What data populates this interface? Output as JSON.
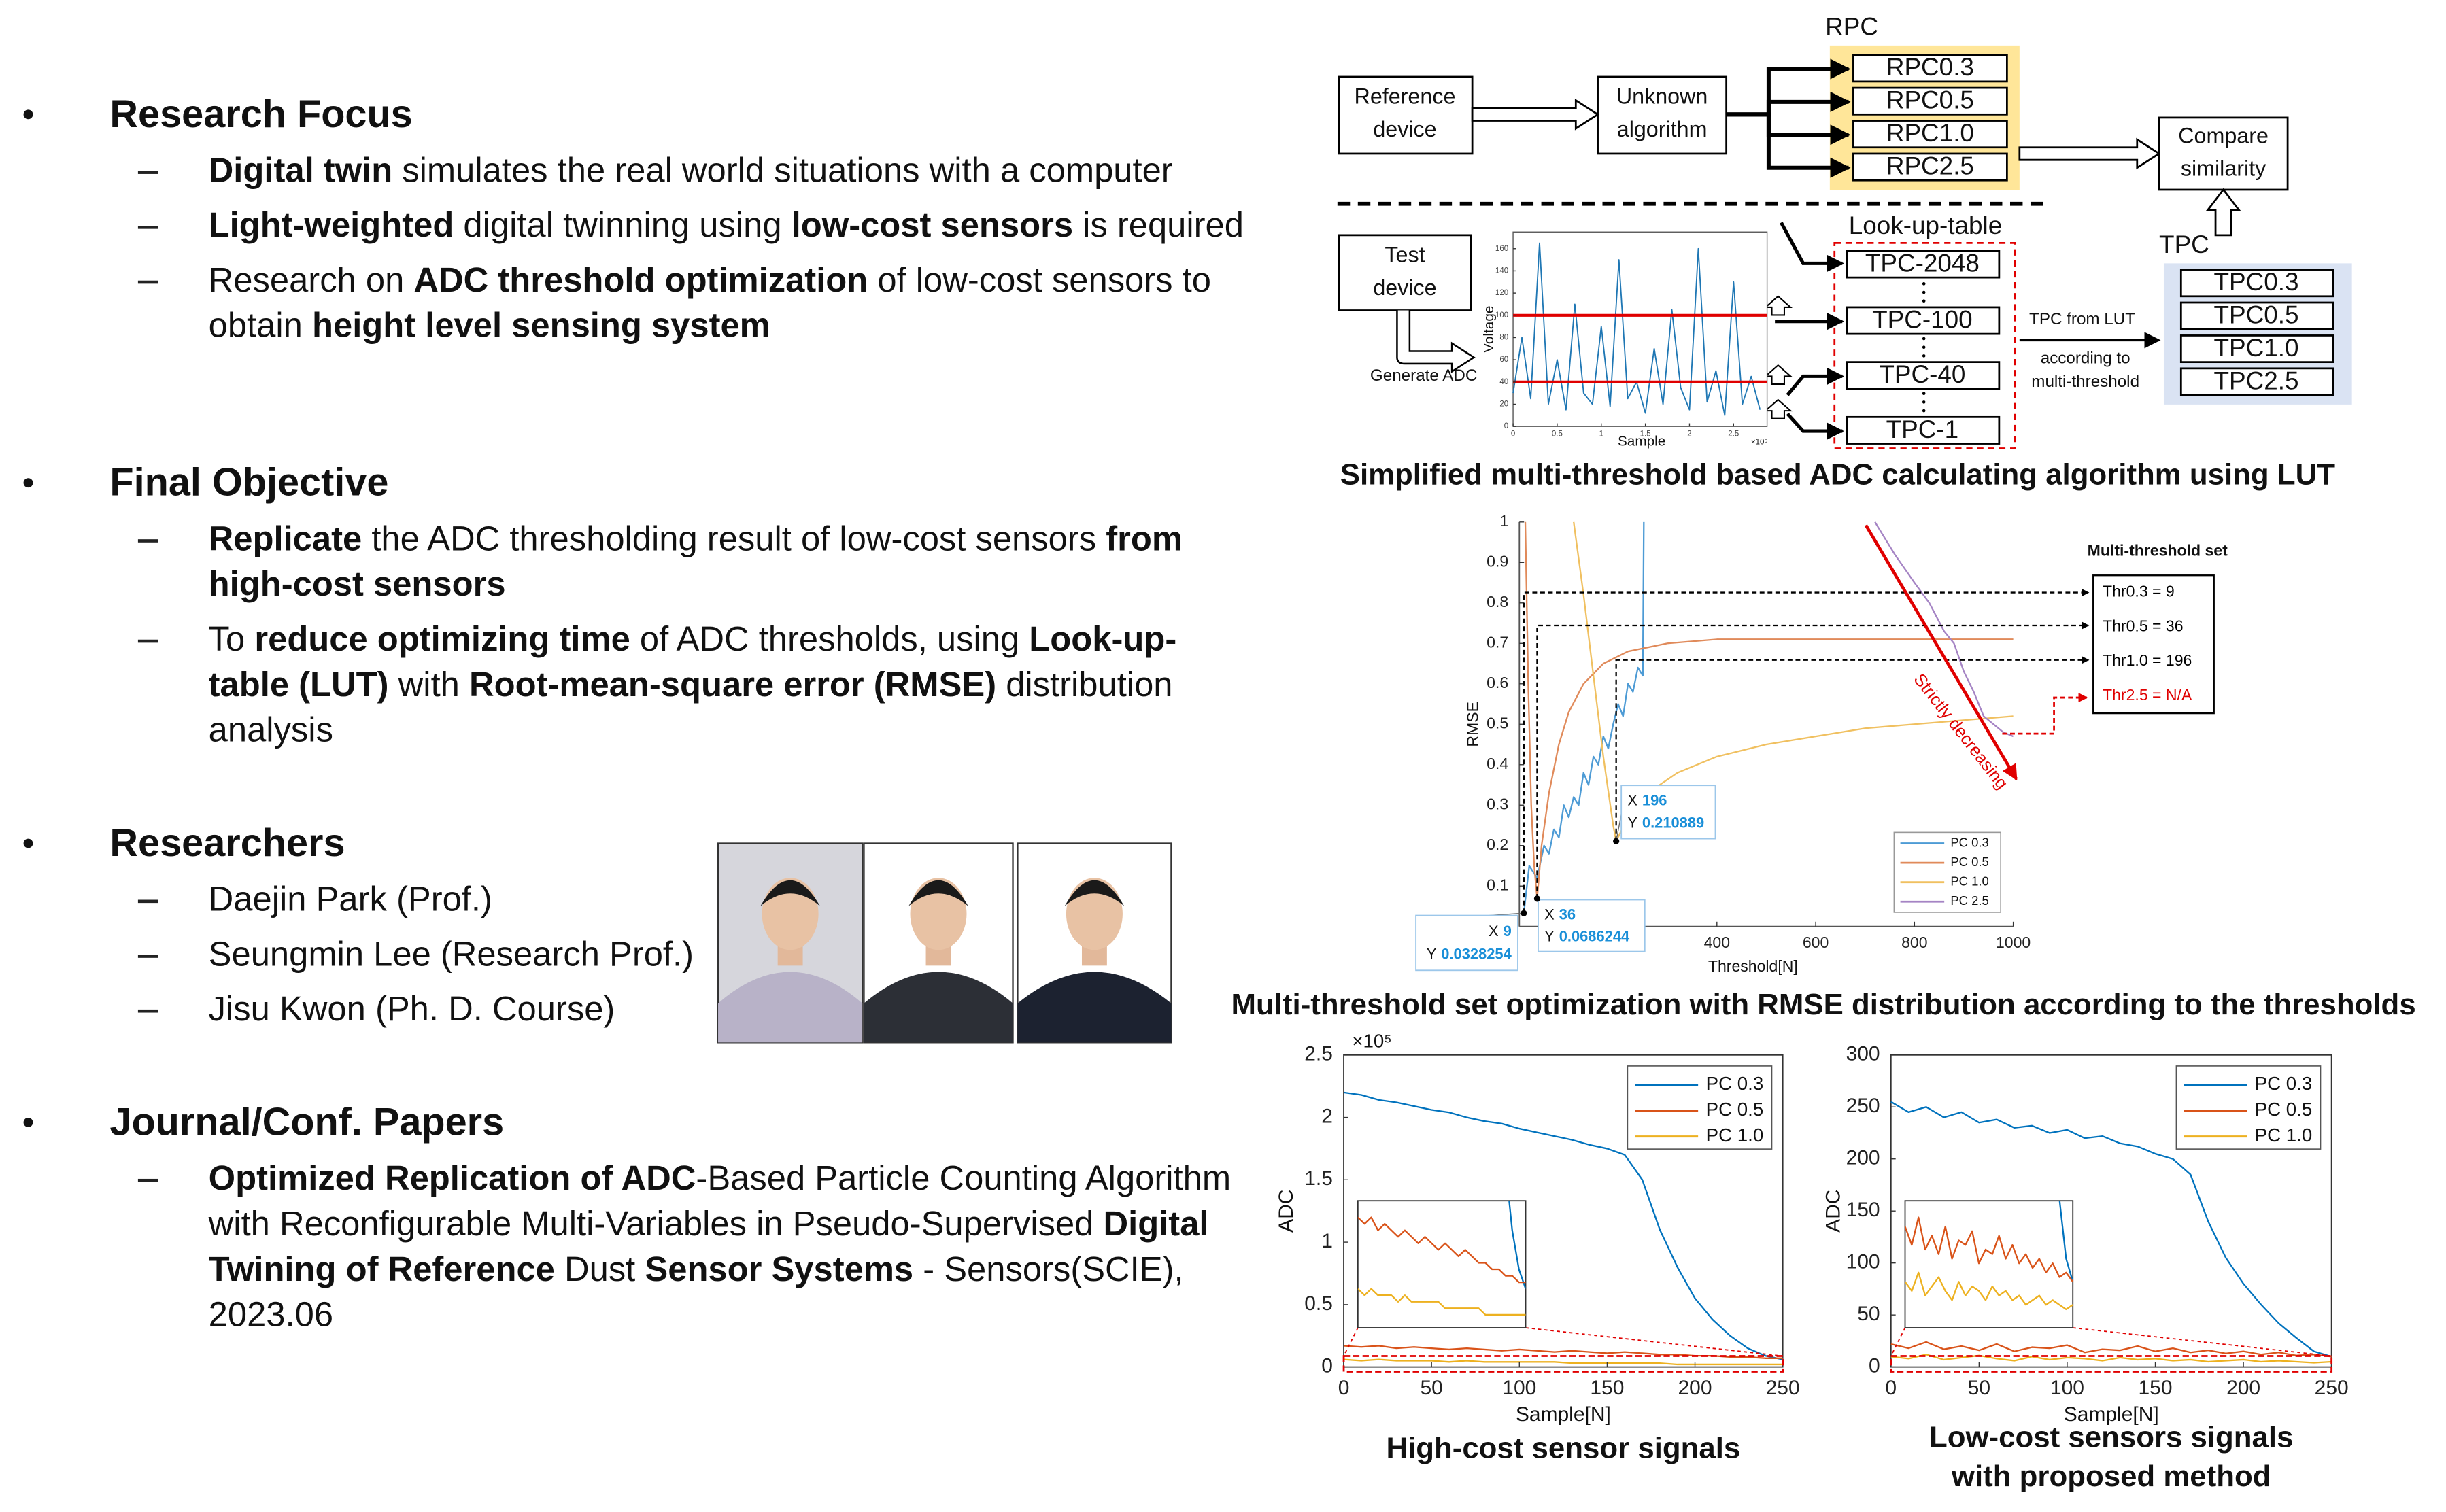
{
  "sections": [
    {
      "heading": "Research Focus",
      "items": [
        [
          {
            "text": "Digital twin",
            "bold": true
          },
          {
            "text": " simulates the real world situations with a computer"
          }
        ],
        [
          {
            "text": "Light-weighted",
            "bold": true
          },
          {
            "text": " digital twinning using "
          },
          {
            "text": "low-cost sensors",
            "bold": true
          },
          {
            "text": " is required"
          }
        ],
        [
          {
            "text": "Research on "
          },
          {
            "text": "ADC threshold optimization",
            "bold": true
          },
          {
            "text": " of low-cost sensors to obtain "
          },
          {
            "text": "height level sensing system",
            "bold": true
          }
        ]
      ]
    },
    {
      "heading": "Final Objective",
      "items": [
        [
          {
            "text": "Replicate",
            "bold": true
          },
          {
            "text": " the ADC thresholding result of low-cost sensors "
          },
          {
            "text": "from high-cost sensors",
            "bold": true
          }
        ],
        [
          {
            "text": "To "
          },
          {
            "text": "reduce optimizing time",
            "bold": true
          },
          {
            "text": " of ADC thresholds, using "
          },
          {
            "text": "Look-up-table (LUT)",
            "bold": true
          },
          {
            "text": " with "
          },
          {
            "text": "Root-mean-square error (RMSE)",
            "bold": true
          },
          {
            "text": " distribution analysis"
          }
        ]
      ]
    },
    {
      "heading": "Researchers",
      "items": [
        [
          {
            "text": "Daejin Park (Prof.)"
          }
        ],
        [
          {
            "text": "Seungmin Lee (Research Prof.)"
          }
        ],
        [
          {
            "text": "Jisu Kwon (Ph. D. Course)"
          }
        ]
      ]
    },
    {
      "heading": "Journal/Conf. Papers",
      "items": [
        [
          {
            "text": "Optimized Replication of ADC",
            "bold": true
          },
          {
            "text": "-Based Particle Counting Algorithm with Reconfigurable Multi-Variables in Pseudo-Supervised "
          },
          {
            "text": "Digital Twining of Reference",
            "bold": true
          },
          {
            "text": " Dust "
          },
          {
            "text": "Sensor Systems",
            "bold": true
          },
          {
            "text": " - Sensors(SCIE), 2023.06"
          }
        ]
      ]
    }
  ],
  "diagram": {
    "caption": "Simplified multi-threshold based ADC calculating algorithm using LUT",
    "rpc_label": "RPC",
    "reference_device": [
      "Reference",
      "device"
    ],
    "unknown_algorithm": [
      "Unknown",
      "algorithm"
    ],
    "rpc_boxes": [
      "RPC0.3",
      "RPC0.5",
      "RPC1.0",
      "RPC2.5"
    ],
    "compare": [
      "Compare",
      "similarity"
    ],
    "test_device": [
      "Test",
      "device"
    ],
    "generate_adc": "Generate ADC",
    "lut_label": "Look-up-table",
    "lut_boxes": [
      "TPC-2048",
      "TPC-100",
      "TPC-40",
      "TPC-1"
    ],
    "tpc_from_lut": "TPC from LUT",
    "according": [
      "according to",
      "multi-threshold"
    ],
    "tpc_label": "TPC",
    "tpc_boxes": [
      "TPC0.3",
      "TPC0.5",
      "TPC1.0",
      "TPC2.5"
    ],
    "signal": {
      "type": "line",
      "xlabel": "Sample",
      "ylabel": "Voltage",
      "x_exponent": "×10⁵",
      "xlim": [
        0,
        288000
      ],
      "ylim": [
        0,
        175
      ],
      "xticks": [
        0,
        {
          "value": 50000,
          "label": "0.5"
        },
        {
          "value": 100000,
          "label": "1"
        },
        {
          "value": 150000,
          "label": "1.5"
        },
        {
          "value": 200000,
          "label": "2"
        },
        {
          "value": 250000,
          "label": "2.5"
        }
      ],
      "yticks": [
        0,
        20,
        40,
        60,
        80,
        100,
        120,
        140,
        160
      ],
      "color": "#1f77b4",
      "x": [
        0,
        10000,
        20000,
        30000,
        40000,
        50000,
        60000,
        70000,
        80000,
        90000,
        100000,
        110000,
        120000,
        130000,
        140000,
        150000,
        160000,
        170000,
        180000,
        190000,
        200000,
        210000,
        220000,
        230000,
        240000,
        250000,
        260000,
        270000,
        280000
      ],
      "values": [
        30,
        80,
        25,
        165,
        20,
        60,
        15,
        110,
        30,
        20,
        90,
        18,
        150,
        25,
        40,
        12,
        70,
        20,
        105,
        35,
        15,
        160,
        22,
        50,
        10,
        130,
        20,
        45,
        15
      ],
      "threshold_lines": [
        100,
        40
      ],
      "threshold_color": "#e00000"
    }
  },
  "rmse_chart": {
    "type": "line",
    "caption": "Multi-threshold set optimization with RMSE distribution according to the thresholds",
    "xlabel": "Threshold[N]",
    "ylabel": "RMSE",
    "xlim": [
      0,
      1000
    ],
    "ylim": [
      0,
      1
    ],
    "xticks": [
      400,
      600,
      800,
      1000
    ],
    "yticks": [
      0.1,
      0.2,
      0.3,
      0.4,
      0.5,
      0.6,
      0.7,
      0.8,
      0.9,
      1
    ],
    "series": [
      {
        "name": "PC 0.3",
        "color": "#4d9bd5",
        "x": [
          9,
          20,
          36,
          50,
          60,
          70,
          80,
          90,
          100,
          110,
          120,
          130,
          140,
          150,
          160,
          170,
          180,
          190,
          200,
          210,
          220,
          230,
          240,
          250,
          252
        ],
        "values": [
          0.033,
          0.15,
          0.12,
          0.2,
          0.18,
          0.24,
          0.22,
          0.3,
          0.27,
          0.32,
          0.3,
          0.38,
          0.35,
          0.42,
          0.4,
          0.47,
          0.44,
          0.5,
          0.55,
          0.52,
          0.6,
          0.58,
          0.64,
          0.62,
          1
        ]
      },
      {
        "name": "PC 0.5",
        "color": "#e08a5a",
        "x": [
          12,
          18,
          24,
          30,
          36,
          45,
          60,
          80,
          100,
          130,
          170,
          220,
          300,
          400,
          600,
          1000
        ],
        "values": [
          1,
          0.6,
          0.3,
          0.15,
          0.069,
          0.2,
          0.33,
          0.45,
          0.53,
          0.6,
          0.65,
          0.68,
          0.7,
          0.71,
          0.71,
          0.71
        ]
      },
      {
        "name": "PC 1.0",
        "color": "#f0c060",
        "x": [
          110,
          130,
          150,
          170,
          190,
          196,
          220,
          260,
          320,
          400,
          500,
          600,
          700,
          800,
          1000
        ],
        "values": [
          1,
          0.82,
          0.62,
          0.42,
          0.25,
          0.211,
          0.27,
          0.33,
          0.38,
          0.42,
          0.45,
          0.47,
          0.49,
          0.5,
          0.52
        ]
      },
      {
        "name": "PC 2.5",
        "color": "#a584c4",
        "x": [
          720,
          760,
          800,
          830,
          860,
          880,
          900,
          920,
          940,
          960,
          980,
          1000
        ],
        "values": [
          1,
          0.92,
          0.85,
          0.8,
          0.73,
          0.7,
          0.63,
          0.58,
          0.52,
          0.5,
          0.48,
          0.47
        ]
      }
    ],
    "datatip_labels": [
      "X",
      "Y"
    ],
    "datatips": [
      {
        "x": 9,
        "y": 0.0328254
      },
      {
        "x": 36,
        "y": 0.0686244
      },
      {
        "x": 196,
        "y": 0.210889
      }
    ],
    "threshold_set": {
      "title": "Multi-threshold set",
      "items": [
        "Thr0.3 = 9",
        "Thr0.5 = 36",
        "Thr1.0 = 196",
        "Thr2.5 = N/A"
      ],
      "item_colors": [
        "#000000",
        "#000000",
        "#000000",
        "#e00000"
      ]
    },
    "annotation": "Strictly decreasing",
    "annotation_color": "#e00000"
  },
  "signal_charts": [
    {
      "type": "line",
      "caption": [
        "High-cost sensor signals"
      ],
      "xlabel": "Sample[N]",
      "ylabel": "ADC",
      "y_exponent": "×10⁵",
      "xlim": [
        0,
        250
      ],
      "ylim": [
        0,
        250000
      ],
      "xticks": [
        0,
        50,
        100,
        150,
        200,
        250
      ],
      "yticks": [
        0,
        {
          "value": 50000,
          "label": "0.5"
        },
        {
          "value": 100000,
          "label": "1"
        },
        {
          "value": 150000,
          "label": "1.5"
        },
        {
          "value": 200000,
          "label": "2"
        },
        {
          "value": 250000,
          "label": "2.5"
        }
      ],
      "x": [
        0,
        10,
        20,
        30,
        40,
        50,
        60,
        70,
        80,
        90,
        100,
        110,
        120,
        130,
        140,
        150,
        160,
        170,
        180,
        190,
        200,
        210,
        220,
        230,
        240,
        250
      ],
      "series": [
        {
          "name": "PC 0.3",
          "color": "#0072bd",
          "values": [
            220000,
            218000,
            214000,
            212000,
            209000,
            206000,
            204000,
            200000,
            197000,
            195000,
            191000,
            188000,
            185000,
            182000,
            178000,
            175000,
            170000,
            150000,
            110000,
            80000,
            55000,
            38000,
            25000,
            15000,
            9000,
            6000
          ]
        },
        {
          "name": "PC 0.5",
          "color": "#d95319",
          "values": [
            17000,
            16000,
            17000,
            15000,
            16000,
            15000,
            14000,
            15000,
            14000,
            13000,
            14000,
            13000,
            12000,
            13000,
            12000,
            11000,
            12000,
            11000,
            10000,
            10000,
            9000,
            9000,
            8000,
            8000,
            7000,
            7000
          ]
        },
        {
          "name": "PC 1.0",
          "color": "#edb120",
          "values": [
            6000,
            5000,
            6000,
            5000,
            5000,
            5000,
            4000,
            5000,
            4000,
            4000,
            4000,
            4000,
            4000,
            3000,
            3000,
            3000,
            3000,
            3000,
            3000,
            2000,
            2000,
            2000,
            2000,
            2000,
            2000,
            2000
          ]
        }
      ]
    },
    {
      "type": "line",
      "caption": [
        "Low-cost sensors signals",
        "with proposed method"
      ],
      "xlabel": "Sample[N]",
      "ylabel": "ADC",
      "xlim": [
        0,
        250
      ],
      "ylim": [
        0,
        300
      ],
      "xticks": [
        0,
        50,
        100,
        150,
        200,
        250
      ],
      "yticks": [
        0,
        50,
        100,
        150,
        200,
        250,
        300
      ],
      "x": [
        0,
        10,
        20,
        30,
        40,
        50,
        60,
        70,
        80,
        90,
        100,
        110,
        120,
        130,
        140,
        150,
        160,
        170,
        180,
        190,
        200,
        210,
        220,
        230,
        240,
        250
      ],
      "series": [
        {
          "name": "PC 0.3",
          "color": "#0072bd",
          "values": [
            255,
            245,
            250,
            240,
            245,
            235,
            238,
            230,
            232,
            225,
            228,
            220,
            222,
            215,
            212,
            205,
            200,
            185,
            140,
            105,
            80,
            60,
            42,
            28,
            15,
            10
          ]
        },
        {
          "name": "PC 0.5",
          "color": "#d95319",
          "values": [
            22,
            18,
            24,
            17,
            20,
            16,
            22,
            15,
            19,
            18,
            21,
            14,
            17,
            16,
            20,
            15,
            18,
            14,
            16,
            13,
            15,
            12,
            14,
            11,
            12,
            10
          ]
        },
        {
          "name": "PC 1.0",
          "color": "#edb120",
          "values": [
            10,
            8,
            12,
            7,
            9,
            11,
            8,
            6,
            10,
            7,
            9,
            8,
            6,
            9,
            7,
            8,
            6,
            7,
            5,
            6,
            7,
            5,
            6,
            5,
            4,
            5
          ]
        }
      ]
    }
  ]
}
